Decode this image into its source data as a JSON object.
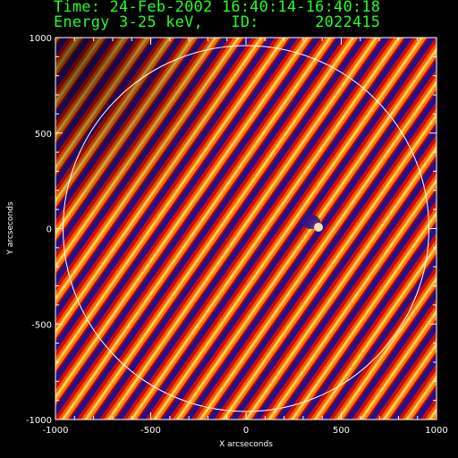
{
  "header": {
    "time_line": "Time: 24-Feb-2002 16:40:14-16:40:18",
    "energy_line": "Energy 3-25 keV,   ID:      2022415"
  },
  "axes": {
    "xlabel": "X arcseconds",
    "ylabel": "Y arcseconds",
    "x_ticks": [
      "-1000",
      "-500",
      "0",
      "500",
      "1000"
    ],
    "y_ticks": [
      "1000",
      "500",
      "0",
      "-500",
      "-1000"
    ]
  },
  "colors": {
    "header_text": "#22ff22",
    "axes": "#ffffff",
    "limb": "#ffffff"
  },
  "image": {
    "type": "rhessi-backprojection-map",
    "colormap": "red-temperature",
    "x_range": [
      -1000,
      1000
    ],
    "y_range": [
      -1000,
      1000
    ],
    "solar_limb_radius_arcsec": 960
  }
}
